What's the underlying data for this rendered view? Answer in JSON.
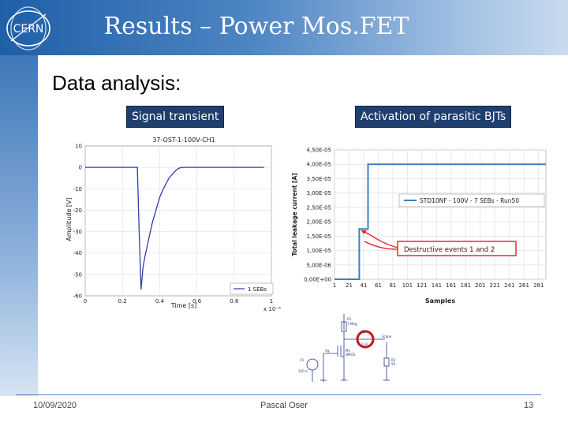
{
  "header": {
    "logo_text": "CERN",
    "title": "Results – Power Mos.FET"
  },
  "subtitle": "Data analysis:",
  "labels": {
    "left": "Signal transient",
    "right": "Activation of parasitic BJTs"
  },
  "footer": {
    "date": "10/09/2020",
    "author": "Pascal Oser",
    "page": "13"
  },
  "colors": {
    "header_dark": "#1f5fa8",
    "label_bg": "#1f3f6e",
    "series": "#2f3fa8",
    "series_right": "#3a7fc4",
    "annotation": "#e02020"
  },
  "chart_data": [
    {
      "type": "line",
      "title": "37-OST-1-100V-CH1",
      "xlabel": "Time [s]",
      "ylabel": "Amplitude [V]",
      "xlim": [
        0,
        1.0
      ],
      "ylim": [
        -60,
        10
      ],
      "x_tick_labels": [
        "0",
        "0.2",
        "0.4",
        "0.6",
        "0.8",
        "1"
      ],
      "x_multiplier": "x 10⁻⁶",
      "y_tick_labels": [
        "10",
        "0",
        "-10",
        "-20",
        "-30",
        "-40",
        "-50",
        "-60"
      ],
      "grid": true,
      "legend": {
        "position": "bottom-right",
        "entries": [
          "1 SEBs"
        ]
      },
      "series": [
        {
          "name": "1 SEBs",
          "x": [
            0,
            0.05,
            0.1,
            0.15,
            0.2,
            0.25,
            0.28,
            0.29,
            0.3,
            0.31,
            0.32,
            0.34,
            0.36,
            0.38,
            0.4,
            0.42,
            0.45,
            0.48,
            0.5,
            0.52,
            0.55,
            0.6,
            0.7,
            0.8,
            0.9,
            0.96
          ],
          "y": [
            0,
            0,
            0,
            0,
            0,
            0,
            0,
            -30,
            -57,
            -47,
            -42,
            -34,
            -26,
            -20,
            -14,
            -10,
            -5,
            -2,
            -0.5,
            0,
            0,
            0,
            0,
            0,
            0,
            0
          ]
        }
      ]
    },
    {
      "type": "line",
      "xlabel": "Samples",
      "ylabel": "Total leakage current [A]",
      "xlim": [
        1,
        291
      ],
      "ylim": [
        0,
        4.5e-05
      ],
      "x_tick_labels": [
        "1",
        "21",
        "41",
        "61",
        "81",
        "101",
        "121",
        "141",
        "161",
        "181",
        "201",
        "221",
        "241",
        "261",
        "281"
      ],
      "y_tick_labels": [
        "4,50E-05",
        "4,00E-05",
        "3,50E-05",
        "3,00E-05",
        "2,50E-05",
        "2,00E-05",
        "1,50E-05",
        "1,00E-05",
        "5,00E-06",
        "0,00E+00"
      ],
      "grid": true,
      "legend": {
        "position": "right",
        "entries": [
          "STD10NF - 100V - 7 SEBs - Run50"
        ]
      },
      "annotation": "Destructive events 1 and 2",
      "series": [
        {
          "name": "STD10NF - 100V - 7 SEBs - Run50",
          "x": [
            1,
            35,
            35,
            47,
            47,
            291
          ],
          "y": [
            0,
            0,
            1.75e-05,
            1.75e-05,
            4e-05,
            4e-05
          ]
        }
      ]
    }
  ]
}
